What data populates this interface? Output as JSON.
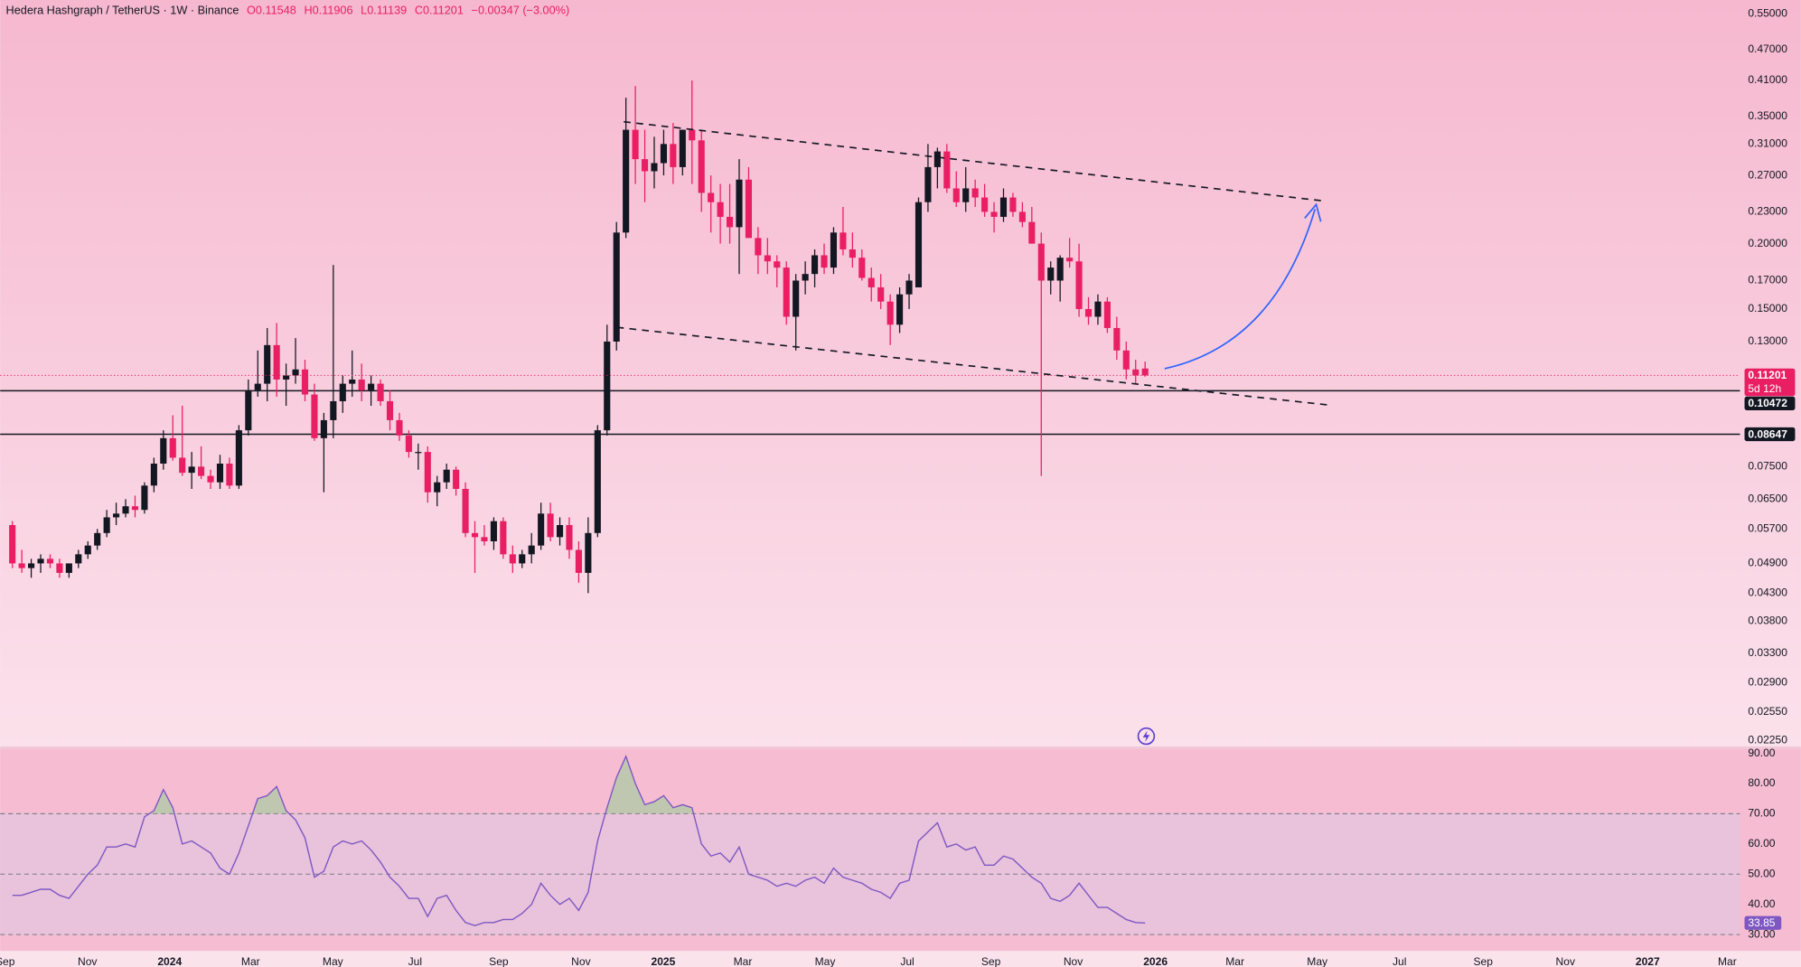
{
  "header": {
    "title": "Hedera Hashgraph / TetherUS · 1W · Binance",
    "legend": [
      "O0.11548",
      "H0.11906",
      "L0.11139",
      "C0.11201",
      "−0.00347 (−3.00%)"
    ]
  },
  "time_axis": {
    "labels": [
      "Sep",
      "Nov",
      "2024",
      "Mar",
      "May",
      "Jul",
      "Sep",
      "Nov",
      "2025",
      "Mar",
      "May",
      "Jul",
      "Sep",
      "Nov",
      "2026",
      "Mar",
      "May",
      "Jul",
      "Sep",
      "Nov",
      "2027",
      "Mar"
    ]
  },
  "chart_data": [
    {
      "type": "candlestick",
      "up_color": "#131722",
      "down_color": "#e91e63",
      "log_scale": true,
      "ylim": [
        0.0219,
        0.584
      ],
      "yticks": [
        {
          "value": 0.55,
          "label": "0.55000"
        },
        {
          "value": 0.47,
          "label": "0.47000"
        },
        {
          "value": 0.41,
          "label": "0.41000"
        },
        {
          "value": 0.35,
          "label": "0.35000"
        },
        {
          "value": 0.31,
          "label": "0.31000"
        },
        {
          "value": 0.27,
          "label": "0.27000"
        },
        {
          "value": 0.23,
          "label": "0.23000"
        },
        {
          "value": 0.2,
          "label": "0.20000"
        },
        {
          "value": 0.17,
          "label": "0.17000"
        },
        {
          "value": 0.15,
          "label": "0.15000"
        },
        {
          "value": 0.13,
          "label": "0.13000"
        },
        {
          "value": 0.075,
          "label": "0.07500"
        },
        {
          "value": 0.065,
          "label": "0.06500"
        },
        {
          "value": 0.057,
          "label": "0.05700"
        },
        {
          "value": 0.049,
          "label": "0.04900"
        },
        {
          "value": 0.043,
          "label": "0.04300"
        },
        {
          "value": 0.038,
          "label": "0.03800"
        },
        {
          "value": 0.033,
          "label": "0.03300"
        },
        {
          "value": 0.029,
          "label": "0.02900"
        },
        {
          "value": 0.0255,
          "label": "0.02550"
        },
        {
          "value": 0.0225,
          "label": "0.02250"
        }
      ],
      "hlines": [
        0.10472,
        0.08647
      ],
      "countdown": "5d 12h",
      "open": [
        0.058,
        0.049,
        0.048,
        0.049,
        0.05,
        0.049,
        0.047,
        0.049,
        0.051,
        0.053,
        0.056,
        0.06,
        0.061,
        0.063,
        0.062,
        0.069,
        0.076,
        0.085,
        0.078,
        0.073,
        0.075,
        0.072,
        0.07,
        0.076,
        0.069,
        0.088,
        0.105,
        0.108,
        0.128,
        0.11,
        0.112,
        0.115,
        0.103,
        0.085,
        0.092,
        0.1,
        0.108,
        0.11,
        0.105,
        0.108,
        0.1,
        0.092,
        0.086,
        0.08,
        0.08,
        0.067,
        0.07,
        0.074,
        0.068,
        0.056,
        0.055,
        0.054,
        0.059,
        0.051,
        0.049,
        0.051,
        0.053,
        0.061,
        0.055,
        0.058,
        0.052,
        0.047,
        0.056,
        0.088,
        0.13,
        0.21,
        0.33,
        0.29,
        0.275,
        0.285,
        0.31,
        0.28,
        0.33,
        0.315,
        0.25,
        0.24,
        0.225,
        0.215,
        0.265,
        0.205,
        0.19,
        0.185,
        0.18,
        0.145,
        0.17,
        0.175,
        0.19,
        0.18,
        0.21,
        0.195,
        0.188,
        0.172,
        0.165,
        0.155,
        0.14,
        0.16,
        0.165,
        0.24,
        0.28,
        0.3,
        0.255,
        0.24,
        0.255,
        0.245,
        0.23,
        0.225,
        0.245,
        0.23,
        0.22,
        0.2,
        0.17,
        0.17,
        0.188,
        0.185,
        0.15,
        0.145,
        0.155,
        0.138,
        0.125,
        0.115,
        0.11548
      ],
      "high": [
        0.059,
        0.052,
        0.05,
        0.051,
        0.051,
        0.05,
        0.049,
        0.052,
        0.054,
        0.057,
        0.062,
        0.064,
        0.065,
        0.066,
        0.07,
        0.078,
        0.088,
        0.094,
        0.098,
        0.08,
        0.082,
        0.074,
        0.079,
        0.078,
        0.09,
        0.11,
        0.125,
        0.138,
        0.141,
        0.118,
        0.132,
        0.12,
        0.108,
        0.095,
        0.182,
        0.112,
        0.125,
        0.118,
        0.112,
        0.11,
        0.105,
        0.095,
        0.088,
        0.083,
        0.082,
        0.072,
        0.076,
        0.075,
        0.07,
        0.059,
        0.058,
        0.06,
        0.06,
        0.053,
        0.052,
        0.056,
        0.064,
        0.064,
        0.06,
        0.06,
        0.054,
        0.06,
        0.09,
        0.14,
        0.22,
        0.38,
        0.4,
        0.33,
        0.32,
        0.33,
        0.34,
        0.33,
        0.41,
        0.33,
        0.27,
        0.26,
        0.26,
        0.29,
        0.28,
        0.215,
        0.205,
        0.19,
        0.185,
        0.175,
        0.185,
        0.195,
        0.2,
        0.215,
        0.235,
        0.21,
        0.195,
        0.18,
        0.175,
        0.16,
        0.165,
        0.175,
        0.245,
        0.31,
        0.305,
        0.31,
        0.275,
        0.28,
        0.265,
        0.26,
        0.24,
        0.255,
        0.25,
        0.24,
        0.235,
        0.21,
        0.185,
        0.19,
        0.205,
        0.2,
        0.158,
        0.16,
        0.158,
        0.145,
        0.13,
        0.12,
        0.11906
      ],
      "low": [
        0.048,
        0.047,
        0.046,
        0.047,
        0.048,
        0.046,
        0.046,
        0.048,
        0.05,
        0.052,
        0.055,
        0.058,
        0.06,
        0.06,
        0.061,
        0.067,
        0.074,
        0.077,
        0.072,
        0.068,
        0.071,
        0.068,
        0.068,
        0.068,
        0.068,
        0.086,
        0.102,
        0.1,
        0.102,
        0.098,
        0.108,
        0.1,
        0.084,
        0.067,
        0.085,
        0.095,
        0.102,
        0.1,
        0.098,
        0.098,
        0.088,
        0.084,
        0.078,
        0.074,
        0.064,
        0.063,
        0.068,
        0.066,
        0.055,
        0.047,
        0.053,
        0.052,
        0.05,
        0.047,
        0.048,
        0.049,
        0.052,
        0.054,
        0.053,
        0.05,
        0.045,
        0.043,
        0.055,
        0.086,
        0.125,
        0.205,
        0.26,
        0.24,
        0.255,
        0.27,
        0.26,
        0.27,
        0.26,
        0.23,
        0.21,
        0.2,
        0.2,
        0.175,
        0.21,
        0.175,
        0.175,
        0.165,
        0.14,
        0.125,
        0.16,
        0.165,
        0.175,
        0.175,
        0.19,
        0.18,
        0.17,
        0.155,
        0.15,
        0.128,
        0.135,
        0.15,
        0.165,
        0.23,
        0.255,
        0.25,
        0.235,
        0.23,
        0.235,
        0.225,
        0.21,
        0.22,
        0.225,
        0.215,
        0.2,
        0.072,
        0.16,
        0.155,
        0.18,
        0.145,
        0.14,
        0.14,
        0.135,
        0.12,
        0.11,
        0.108,
        0.11139
      ],
      "close": [
        0.049,
        0.048,
        0.049,
        0.05,
        0.049,
        0.047,
        0.049,
        0.051,
        0.053,
        0.056,
        0.06,
        0.061,
        0.063,
        0.062,
        0.069,
        0.076,
        0.085,
        0.078,
        0.073,
        0.075,
        0.072,
        0.07,
        0.076,
        0.069,
        0.088,
        0.105,
        0.108,
        0.128,
        0.11,
        0.112,
        0.115,
        0.103,
        0.085,
        0.092,
        0.1,
        0.108,
        0.11,
        0.105,
        0.108,
        0.1,
        0.092,
        0.086,
        0.08,
        0.08,
        0.067,
        0.07,
        0.074,
        0.068,
        0.056,
        0.055,
        0.054,
        0.059,
        0.051,
        0.049,
        0.051,
        0.053,
        0.061,
        0.055,
        0.058,
        0.052,
        0.047,
        0.056,
        0.088,
        0.13,
        0.21,
        0.33,
        0.29,
        0.275,
        0.285,
        0.31,
        0.28,
        0.33,
        0.315,
        0.25,
        0.24,
        0.225,
        0.215,
        0.265,
        0.205,
        0.19,
        0.185,
        0.18,
        0.145,
        0.17,
        0.175,
        0.19,
        0.18,
        0.21,
        0.195,
        0.188,
        0.172,
        0.165,
        0.155,
        0.14,
        0.16,
        0.17,
        0.24,
        0.28,
        0.3,
        0.255,
        0.24,
        0.255,
        0.245,
        0.23,
        0.225,
        0.245,
        0.23,
        0.22,
        0.2,
        0.17,
        0.18,
        0.188,
        0.185,
        0.15,
        0.145,
        0.155,
        0.138,
        0.125,
        0.115,
        0.112,
        0.11201
      ]
    },
    {
      "type": "line",
      "color": "#7e57c2",
      "ylim": [
        24.6,
        91.5
      ],
      "yticks": [
        {
          "value": 90,
          "label": "90.00"
        },
        {
          "value": 80,
          "label": "80.00"
        },
        {
          "value": 70,
          "label": "70.00"
        },
        {
          "value": 60,
          "label": "60.00"
        },
        {
          "value": 50,
          "label": "50.00"
        },
        {
          "value": 40,
          "label": "40.00"
        },
        {
          "value": 30,
          "label": "30.00"
        }
      ],
      "levels": [
        70,
        50,
        30
      ],
      "band": [
        30,
        70
      ],
      "values": [
        43,
        43,
        44,
        45,
        45,
        43,
        42,
        46,
        50,
        53,
        59,
        59,
        60,
        59,
        69,
        71,
        78,
        72,
        60,
        61,
        59,
        57,
        52,
        50,
        57,
        66,
        75,
        76,
        79,
        71,
        68,
        62,
        49,
        51,
        59,
        61,
        60,
        61,
        58,
        54,
        49,
        46,
        42,
        42,
        36,
        42,
        43,
        38,
        34,
        33,
        34,
        34,
        35,
        35,
        37,
        40,
        47,
        43,
        40,
        42,
        38,
        44,
        61,
        72,
        82,
        89,
        80,
        73,
        74,
        76,
        72,
        73,
        72,
        60,
        56,
        57,
        54,
        59,
        50,
        49,
        48,
        46,
        47,
        46,
        48,
        49,
        47,
        52,
        49,
        48,
        47,
        45,
        44,
        42,
        47,
        48,
        61,
        64,
        67,
        59,
        60,
        58,
        59,
        53,
        53,
        56,
        55,
        52,
        49,
        47,
        42,
        41,
        43,
        47,
        43,
        39,
        39,
        37,
        35,
        34,
        33.85
      ]
    }
  ]
}
